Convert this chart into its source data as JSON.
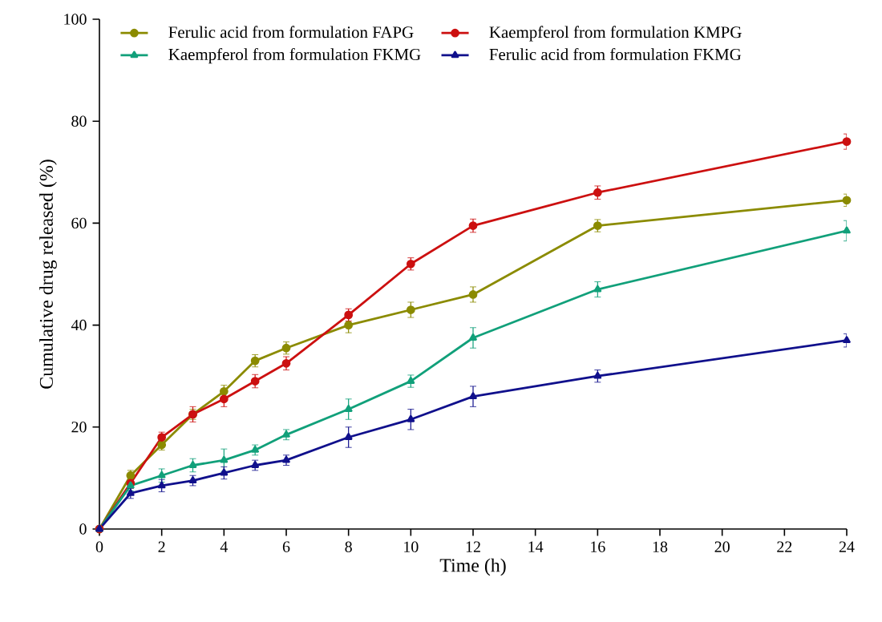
{
  "chart_data": {
    "type": "line",
    "xlabel": "Time (h)",
    "ylabel": "Cumulative drug released (%)",
    "x": [
      0,
      1,
      2,
      3,
      4,
      5,
      6,
      8,
      10,
      12,
      16,
      24
    ],
    "xlim": [
      0,
      24
    ],
    "xticks": [
      0,
      2,
      4,
      6,
      8,
      10,
      12,
      14,
      16,
      18,
      20,
      22,
      24
    ],
    "ylim": [
      0,
      100
    ],
    "yticks": [
      0,
      20,
      40,
      60,
      80,
      100
    ],
    "grid": false,
    "legend": "top",
    "line_style": "solid",
    "series": [
      {
        "name": "Ferulic acid from formulation FAPG",
        "color": "#8b8b00",
        "marker": "circle",
        "values": [
          0,
          10.5,
          16.5,
          22.5,
          27,
          33,
          35.5,
          40,
          43,
          46,
          59.5,
          64.5
        ],
        "errors": [
          null,
          1,
          1,
          1,
          1.2,
          1.2,
          1.2,
          1.5,
          1.5,
          1.5,
          1.2,
          1.2
        ]
      },
      {
        "name": "Kaempferol from formulation KMPG",
        "color": "#cc1010",
        "marker": "circle",
        "values": [
          0,
          9,
          18,
          22.5,
          25.5,
          29,
          32.5,
          42,
          52,
          59.5,
          66,
          76
        ],
        "errors": [
          null,
          1,
          1,
          1.5,
          1.5,
          1.3,
          1.3,
          1.2,
          1.2,
          1.3,
          1.3,
          1.5
        ]
      },
      {
        "name": "Kaempferol from formulation FKMG",
        "color": "#11a07a",
        "marker": "triangle",
        "values": [
          0,
          8.5,
          10.5,
          12.5,
          13.5,
          15.5,
          18.5,
          23.5,
          29,
          37.5,
          47,
          58.5
        ],
        "errors": [
          null,
          1,
          1.3,
          1.3,
          2.2,
          1,
          1,
          2,
          1.2,
          2,
          1.5,
          2
        ]
      },
      {
        "name": "Ferulic acid from formulation FKMG",
        "color": "#10108c",
        "marker": "triangle",
        "values": [
          0,
          7,
          8.5,
          9.5,
          11,
          12.5,
          13.5,
          18,
          21.5,
          26,
          30,
          37
        ],
        "errors": [
          null,
          1,
          1.2,
          1,
          1.2,
          1,
          1,
          2,
          2,
          2,
          1.2,
          1.3
        ]
      }
    ]
  }
}
